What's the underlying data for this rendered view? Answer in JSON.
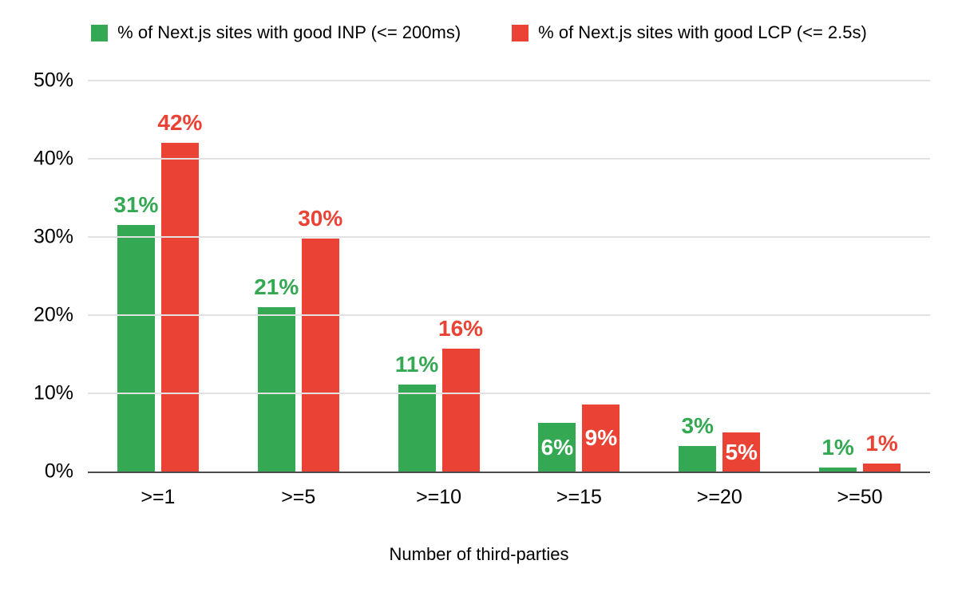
{
  "chart_data": {
    "type": "bar",
    "title": "",
    "xlabel": "Number of third-parties",
    "ylabel": "",
    "categories": [
      ">=1",
      ">=5",
      ">=10",
      ">=15",
      ">=20",
      ">=50"
    ],
    "ylim": [
      0,
      50
    ],
    "ytick_values": [
      0,
      10,
      20,
      30,
      40,
      50
    ],
    "yticks": [
      "0%",
      "10%",
      "20%",
      "30%",
      "40%",
      "50%"
    ],
    "grid": true,
    "legend_position": "top",
    "background_color": "#ffffff",
    "series": [
      {
        "name": "% of Next.js sites with good INP (<= 200ms)",
        "color": "#34a853",
        "values": [
          31,
          21,
          11,
          6,
          3,
          1
        ],
        "labels": [
          "31%",
          "21%",
          "11%",
          "6%",
          "3%",
          "1%"
        ],
        "bar_heights_pct": [
          31.5,
          21,
          11.1,
          6.2,
          3.3,
          0.5
        ],
        "label_inside": [
          false,
          false,
          false,
          true,
          false,
          false
        ]
      },
      {
        "name": "% of Next.js sites with good LCP (<= 2.5s)",
        "color": "#ea4335",
        "values": [
          42,
          30,
          16,
          9,
          5,
          1
        ],
        "labels": [
          "42%",
          "30%",
          "16%",
          "9%",
          "5%",
          "1%"
        ],
        "bar_heights_pct": [
          42,
          29.8,
          15.7,
          8.6,
          5,
          1
        ],
        "label_inside": [
          false,
          false,
          false,
          true,
          true,
          false
        ]
      }
    ]
  }
}
